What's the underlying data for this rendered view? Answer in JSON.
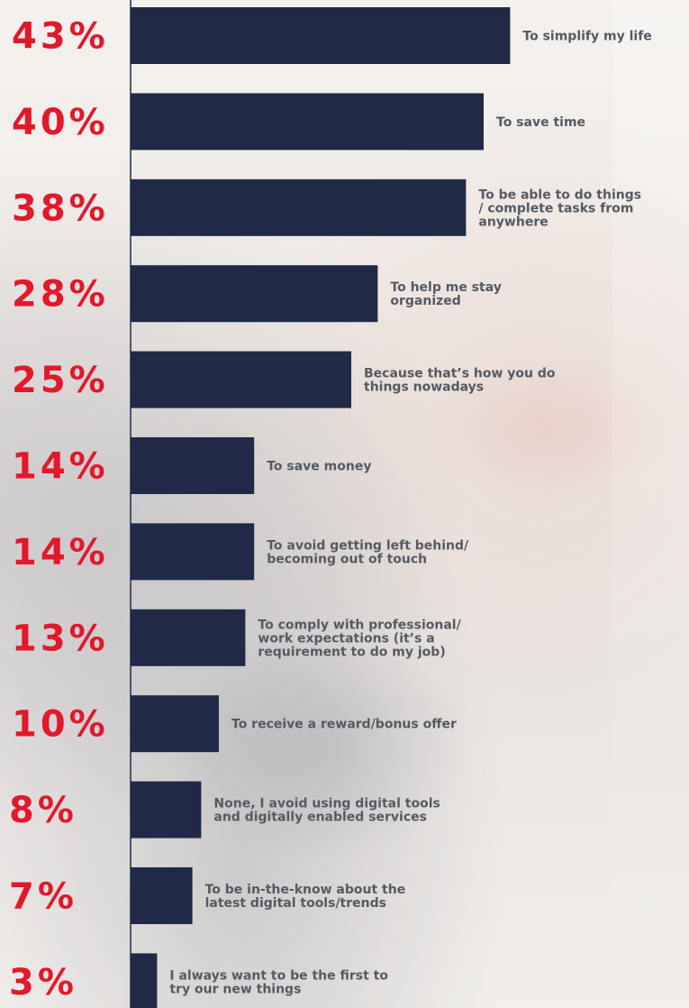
{
  "chart_data": {
    "type": "bar",
    "orientation": "horizontal",
    "value_unit": "%",
    "xlim": [
      0,
      45
    ],
    "categories": [
      "To simplify my life",
      "To save time",
      "To be able to do things / complete tasks from anywhere",
      "To help me stay organized",
      "Because that’s how you do things nowadays",
      "To save money",
      "To avoid getting left behind/ becoming out of touch",
      "To comply with professional/ work expectations (it’s a requirement to do my job)",
      "To receive a reward/bonus offer",
      "None, I avoid using digital tools and digitally enabled services",
      "To be in-the-know about the latest digital tools/trends",
      "I always want to be the first to try our new things"
    ],
    "category_lines": [
      [
        "To simplify my life"
      ],
      [
        "To save time"
      ],
      [
        "To be able to do things",
        "/ complete tasks from",
        "anywhere"
      ],
      [
        "To help me stay",
        "organized"
      ],
      [
        "Because that’s how you do",
        "things nowadays"
      ],
      [
        "To save money"
      ],
      [
        "To avoid getting left behind/",
        "becoming out of touch"
      ],
      [
        "To comply with professional/",
        "work expectations (it’s a",
        "requirement to do my job)"
      ],
      [
        "To receive a reward/bonus offer"
      ],
      [
        "None, I avoid using digital tools",
        "and digitally enabled services"
      ],
      [
        "To be in-the-know about the",
        "latest digital tools/trends"
      ],
      [
        "I always want to be the first to",
        "try our new things"
      ]
    ],
    "values": [
      43,
      40,
      38,
      28,
      25,
      14,
      14,
      13,
      10,
      8,
      7,
      3
    ],
    "value_labels": [
      "43%",
      "40%",
      "38%",
      "28%",
      "25%",
      "14%",
      "14%",
      "13%",
      "10%",
      "8%",
      "7%",
      "3%"
    ],
    "colors": {
      "bar": "#202a46",
      "value_label": "#e2182b",
      "category_label": "#545a63"
    },
    "grid": false,
    "legend": "none"
  }
}
